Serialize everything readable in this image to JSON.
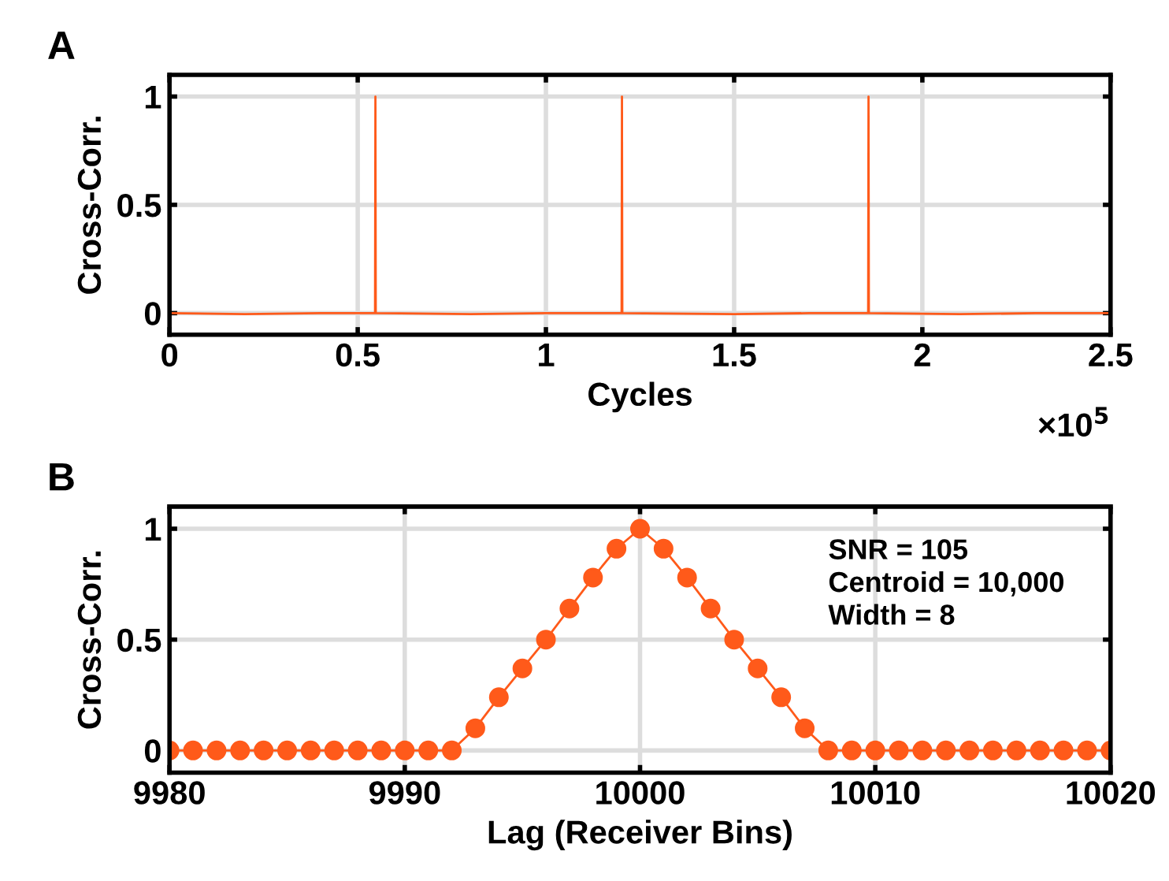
{
  "chart_data": [
    {
      "type": "line",
      "title": "A",
      "xlabel": "Cycles",
      "ylabel": "Cross-Corr.",
      "annotations": [
        "×10$^{5}$"
      ],
      "series": [
        {
          "color": "#ff5a1a",
          "x": [
            0,
            0.2,
            0.4,
            0.546,
            0.547,
            0.548,
            0.8,
            1.0,
            1.201,
            1.202,
            1.203,
            1.5,
            1.7,
            1.856,
            1.857,
            1.858,
            2.1,
            2.3,
            2.5
          ],
          "values": [
            0,
            -0.005,
            0,
            0,
            1,
            0,
            -0.005,
            0,
            0,
            1,
            0,
            -0.005,
            0,
            0,
            1,
            0,
            -0.005,
            0,
            0
          ]
        }
      ],
      "xlim": [
        0,
        2.5
      ],
      "ylim": [
        -0.1,
        1.1
      ],
      "xticks": [
        0,
        0.5,
        1,
        1.5,
        2,
        2.5
      ],
      "yticks": [
        0,
        0.5,
        1
      ],
      "grid": true,
      "marker": "none",
      "line_style": "solid"
    },
    {
      "type": "line",
      "title": "B",
      "xlabel": "Lag (Receiver Bins)",
      "ylabel": "Cross-Corr.",
      "annotations": [
        "SNR = 105\nCentroid = 10,000\nWidth = 8"
      ],
      "x": [
        9980,
        9981,
        9982,
        9983,
        9984,
        9985,
        9986,
        9987,
        9988,
        9989,
        9990,
        9991,
        9992,
        9993,
        9994,
        9995,
        9996,
        9997,
        9998,
        9999,
        10000,
        10001,
        10002,
        10003,
        10004,
        10005,
        10006,
        10007,
        10008,
        10009,
        10010,
        10011,
        10012,
        10013,
        10014,
        10015,
        10016,
        10017,
        10018,
        10019,
        10020
      ],
      "series": [
        {
          "color": "#ff5a1a",
          "values": [
            0,
            0,
            0,
            0,
            0,
            0,
            0,
            0,
            0,
            0,
            0,
            0,
            0,
            0.1,
            0.24,
            0.37,
            0.5,
            0.64,
            0.78,
            0.91,
            1,
            0.91,
            0.78,
            0.64,
            0.5,
            0.37,
            0.24,
            0.1,
            0,
            0,
            0,
            0,
            0,
            0,
            0,
            0,
            0,
            0,
            0,
            0,
            0
          ]
        }
      ],
      "xlim": [
        9980,
        10020
      ],
      "ylim": [
        -0.1,
        1.1
      ],
      "xticks": [
        9980,
        9990,
        10000,
        10010,
        10020
      ],
      "yticks": [
        0,
        0.5,
        1
      ],
      "grid": true,
      "marker": "circle",
      "line_style": "solid"
    }
  ]
}
